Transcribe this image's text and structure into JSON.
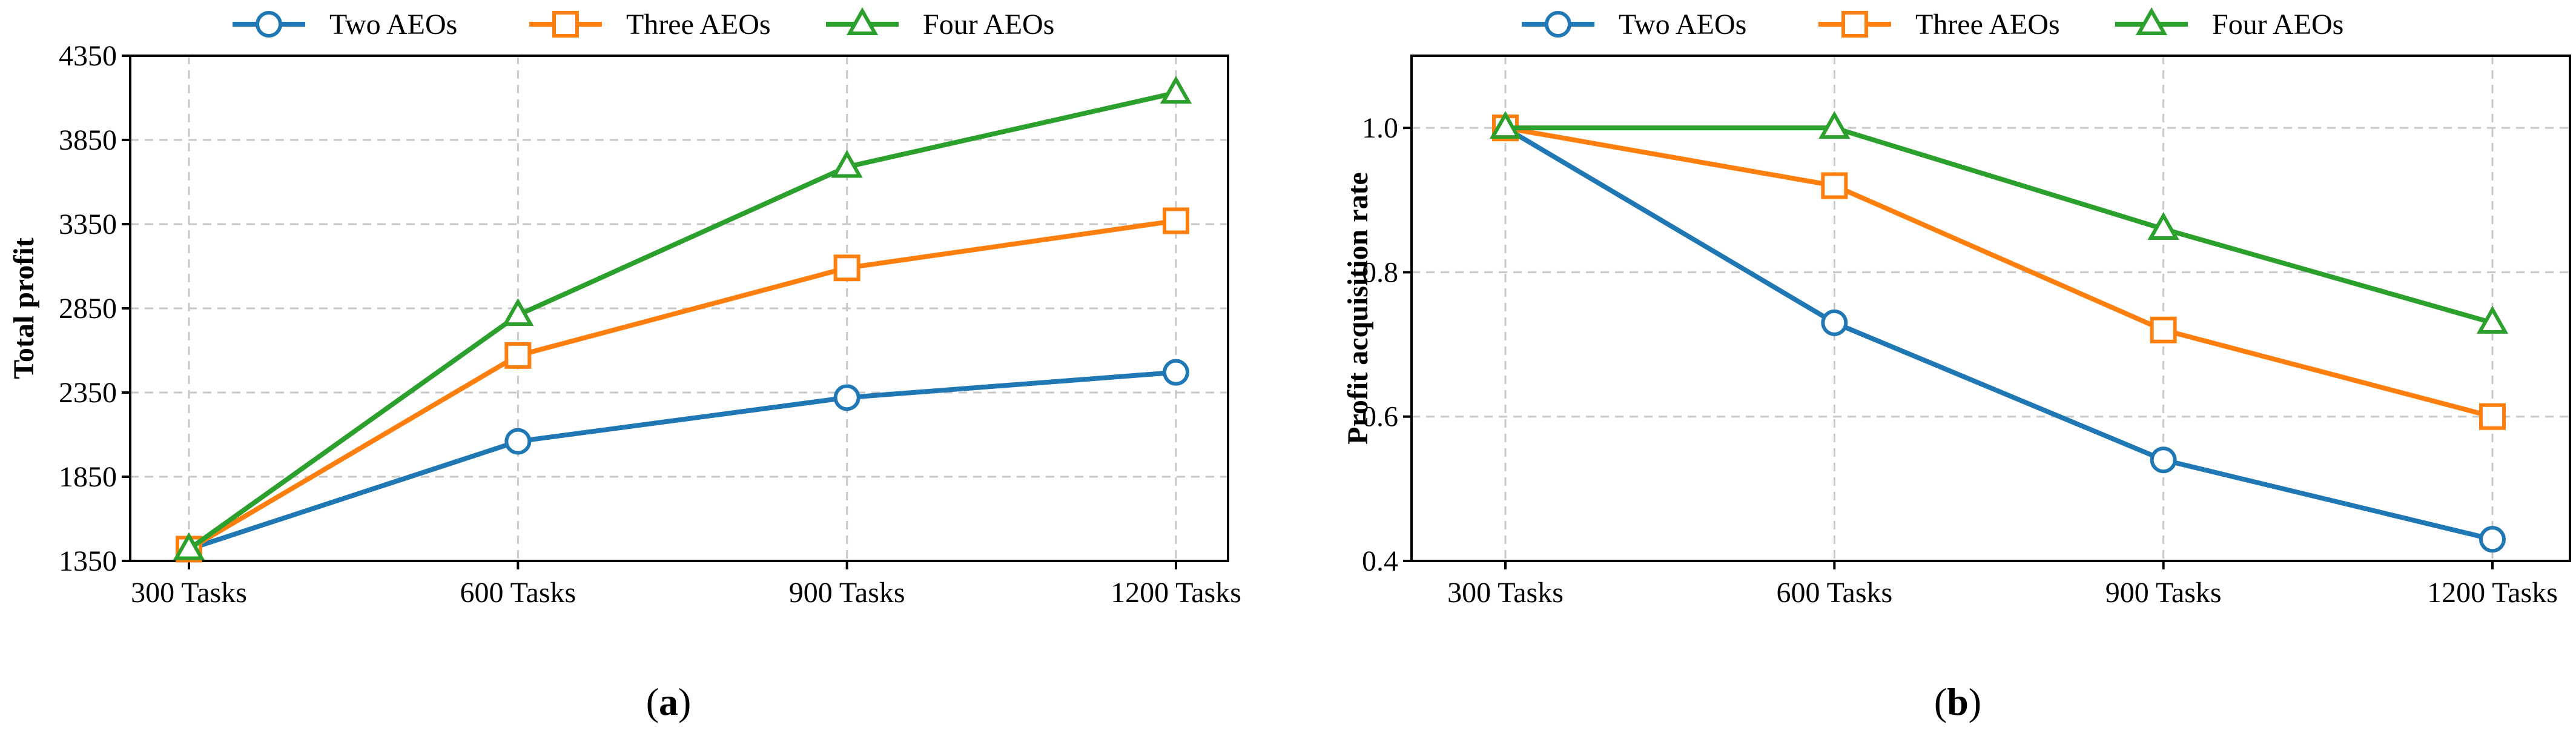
{
  "chart_data": [
    {
      "type": "line",
      "panel_label": "a",
      "ylabel": "Total profit",
      "xlabel": "",
      "categories": [
        "300 Tasks",
        "600 Tasks",
        "900 Tasks",
        "1200 Tasks"
      ],
      "ylim": [
        1350,
        4350
      ],
      "yticks": [
        1350,
        1850,
        2350,
        2850,
        3350,
        3850,
        4350
      ],
      "ytick_labels": [
        "1350",
        "1850",
        "2350",
        "2850",
        "3350",
        "3850",
        "4350"
      ],
      "grid": true,
      "legend_position": "top-center",
      "series": [
        {
          "name": "Two AEOs",
          "color": "#1f77b4",
          "marker": "circle",
          "values": [
            1420,
            2060,
            2320,
            2470
          ]
        },
        {
          "name": "Three AEOs",
          "color": "#ff7f0e",
          "marker": "square",
          "values": [
            1420,
            2570,
            3090,
            3370
          ]
        },
        {
          "name": "Four AEOs",
          "color": "#2ca02c",
          "marker": "triangle",
          "values": [
            1420,
            2810,
            3690,
            4130
          ]
        }
      ]
    },
    {
      "type": "line",
      "panel_label": "b",
      "ylabel": "Profit acquisition rate",
      "xlabel": "",
      "categories": [
        "300 Tasks",
        "600 Tasks",
        "900 Tasks",
        "1200 Tasks"
      ],
      "ylim": [
        0.4,
        1.1
      ],
      "yticks": [
        0.4,
        0.6,
        0.8,
        1.0
      ],
      "ytick_labels": [
        "0.4",
        "0.6",
        "0.8",
        "1.0"
      ],
      "grid": true,
      "legend_position": "top-center",
      "series": [
        {
          "name": "Two AEOs",
          "color": "#1f77b4",
          "marker": "circle",
          "values": [
            1.0,
            0.73,
            0.54,
            0.43
          ]
        },
        {
          "name": "Three AEOs",
          "color": "#ff7f0e",
          "marker": "square",
          "values": [
            1.0,
            0.92,
            0.72,
            0.6
          ]
        },
        {
          "name": "Four AEOs",
          "color": "#2ca02c",
          "marker": "triangle",
          "values": [
            1.0,
            1.0,
            0.86,
            0.73
          ]
        }
      ]
    }
  ]
}
